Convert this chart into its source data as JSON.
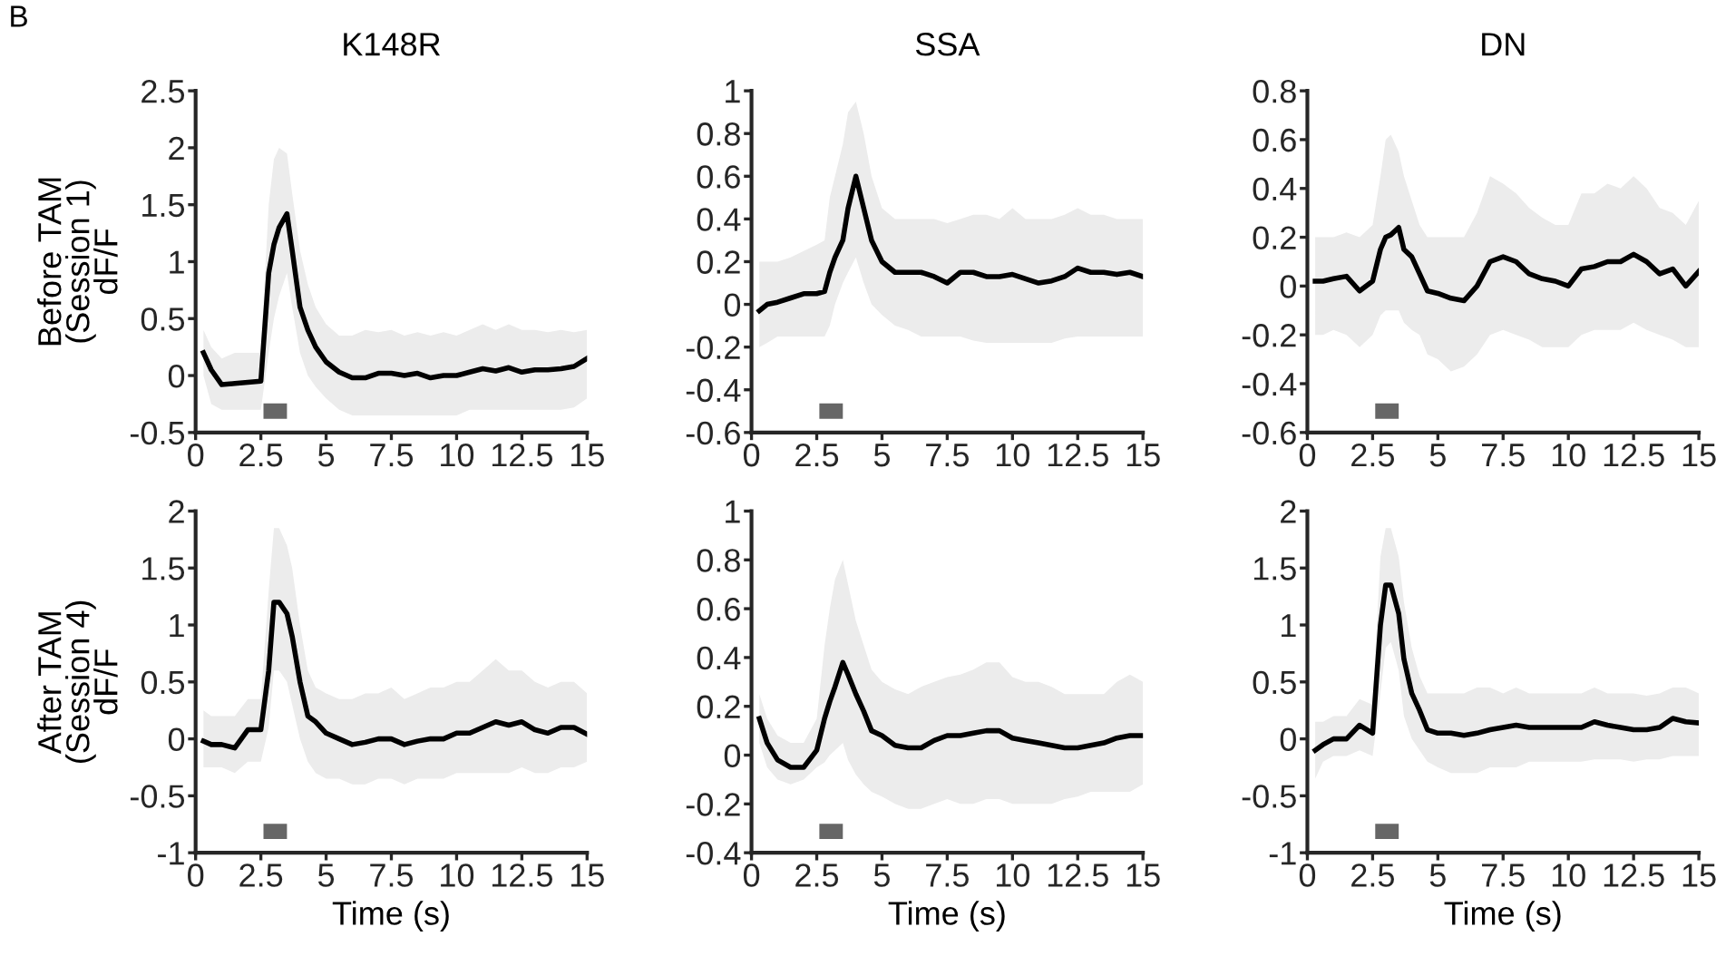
{
  "chart_data": [
    {
      "type": "line",
      "title": "K148R",
      "ylabel": "Before TAM\n(Session 1)\ndF/F",
      "annotations": [
        "B"
      ],
      "x": [
        0.3,
        0.6,
        1,
        1.5,
        2,
        2.5,
        2.8,
        3,
        3.2,
        3.5,
        3.7,
        4,
        4.3,
        4.6,
        5,
        5.5,
        6,
        6.5,
        7,
        7.5,
        8,
        8.5,
        9,
        9.5,
        10,
        10.5,
        11,
        11.5,
        12,
        12.5,
        13,
        13.5,
        14,
        14.5,
        15
      ],
      "xlim": [
        0,
        15
      ],
      "xticks": [
        0,
        2.5,
        5,
        7.5,
        10,
        12.5,
        15
      ],
      "ylim": [
        -0.5,
        2.5
      ],
      "yticks": [
        -0.5,
        0,
        0.5,
        1,
        1.5,
        2,
        2.5
      ],
      "line_style": "solid",
      "bands": [
        {
          "axis": "x",
          "from": 2.6,
          "to": 3.5,
          "color": "#666666"
        }
      ],
      "series": [
        {
          "color": "#000000",
          "values": [
            0.2,
            0.05,
            -0.08,
            -0.07,
            -0.06,
            -0.05,
            0.9,
            1.15,
            1.3,
            1.42,
            1.1,
            0.6,
            0.4,
            0.25,
            0.12,
            0.03,
            -0.02,
            -0.02,
            0.02,
            0.02,
            0,
            0.02,
            -0.02,
            0,
            0,
            0.03,
            0.06,
            0.04,
            0.07,
            0.03,
            0.05,
            0.05,
            0.06,
            0.08,
            0.15
          ],
          "upper": [
            0.4,
            0.25,
            0.15,
            0.2,
            0.2,
            0.2,
            1.5,
            1.9,
            2.0,
            1.95,
            1.6,
            1.1,
            0.8,
            0.6,
            0.45,
            0.35,
            0.35,
            0.4,
            0.38,
            0.4,
            0.35,
            0.38,
            0.35,
            0.38,
            0.35,
            0.4,
            0.45,
            0.4,
            0.45,
            0.4,
            0.4,
            0.38,
            0.4,
            0.38,
            0.4
          ],
          "lower": [
            0.0,
            -0.25,
            -0.3,
            -0.3,
            -0.3,
            -0.3,
            0.2,
            0.5,
            0.7,
            0.9,
            0.6,
            0.2,
            0.0,
            -0.1,
            -0.2,
            -0.3,
            -0.35,
            -0.35,
            -0.35,
            -0.35,
            -0.35,
            -0.35,
            -0.35,
            -0.35,
            -0.35,
            -0.3,
            -0.3,
            -0.3,
            -0.3,
            -0.3,
            -0.3,
            -0.3,
            -0.3,
            -0.28,
            -0.2
          ]
        }
      ]
    },
    {
      "type": "line",
      "title": "SSA",
      "x": [
        0.3,
        0.6,
        1,
        1.5,
        2,
        2.5,
        2.8,
        3,
        3.2,
        3.5,
        3.7,
        4,
        4.3,
        4.6,
        5,
        5.5,
        6,
        6.5,
        7,
        7.5,
        8,
        8.5,
        9,
        9.5,
        10,
        10.5,
        11,
        11.5,
        12,
        12.5,
        13,
        13.5,
        14,
        14.5,
        15
      ],
      "xlim": [
        0,
        15
      ],
      "xticks": [
        0,
        2.5,
        5,
        7.5,
        10,
        12.5,
        15
      ],
      "ylim": [
        -0.6,
        1
      ],
      "yticks": [
        -0.6,
        -0.4,
        -0.2,
        0,
        0.2,
        0.4,
        0.6,
        0.8,
        1
      ],
      "line_style": "solid",
      "bands": [
        {
          "axis": "x",
          "from": 2.6,
          "to": 3.5,
          "color": "#666666"
        }
      ],
      "series": [
        {
          "color": "#000000",
          "values": [
            -0.03,
            0.0,
            0.01,
            0.03,
            0.05,
            0.05,
            0.06,
            0.15,
            0.22,
            0.3,
            0.45,
            0.6,
            0.45,
            0.3,
            0.2,
            0.15,
            0.15,
            0.15,
            0.13,
            0.1,
            0.15,
            0.15,
            0.13,
            0.13,
            0.14,
            0.12,
            0.1,
            0.11,
            0.13,
            0.17,
            0.15,
            0.15,
            0.14,
            0.15,
            0.13
          ],
          "upper": [
            0.2,
            0.2,
            0.2,
            0.22,
            0.25,
            0.28,
            0.3,
            0.5,
            0.6,
            0.75,
            0.9,
            0.95,
            0.8,
            0.6,
            0.45,
            0.4,
            0.4,
            0.4,
            0.4,
            0.38,
            0.4,
            0.42,
            0.42,
            0.4,
            0.45,
            0.4,
            0.4,
            0.4,
            0.42,
            0.45,
            0.42,
            0.42,
            0.4,
            0.4,
            0.4
          ],
          "lower": [
            -0.2,
            -0.18,
            -0.15,
            -0.15,
            -0.15,
            -0.15,
            -0.15,
            -0.1,
            0.0,
            0.1,
            0.15,
            0.22,
            0.1,
            0.0,
            -0.05,
            -0.1,
            -0.12,
            -0.15,
            -0.15,
            -0.15,
            -0.15,
            -0.17,
            -0.18,
            -0.18,
            -0.18,
            -0.18,
            -0.18,
            -0.18,
            -0.16,
            -0.15,
            -0.15,
            -0.15,
            -0.15,
            -0.15,
            -0.15
          ]
        }
      ]
    },
    {
      "type": "line",
      "title": "DN",
      "x": [
        0.3,
        0.6,
        1,
        1.5,
        2,
        2.5,
        2.8,
        3,
        3.2,
        3.5,
        3.7,
        4,
        4.3,
        4.6,
        5,
        5.5,
        6,
        6.5,
        7,
        7.5,
        8,
        8.5,
        9,
        9.5,
        10,
        10.5,
        11,
        11.5,
        12,
        12.5,
        13,
        13.5,
        14,
        14.5,
        15
      ],
      "xlim": [
        0,
        15
      ],
      "xticks": [
        0,
        2.5,
        5,
        7.5,
        10,
        12.5,
        15
      ],
      "ylim": [
        -0.6,
        0.8
      ],
      "yticks": [
        -0.6,
        -0.4,
        -0.2,
        0,
        0.2,
        0.4,
        0.6,
        0.8
      ],
      "line_style": "solid",
      "bands": [
        {
          "axis": "x",
          "from": 2.6,
          "to": 3.5,
          "color": "#666666"
        }
      ],
      "series": [
        {
          "color": "#000000",
          "values": [
            0.02,
            0.02,
            0.03,
            0.04,
            -0.02,
            0.02,
            0.15,
            0.2,
            0.21,
            0.24,
            0.15,
            0.12,
            0.05,
            -0.02,
            -0.03,
            -0.05,
            -0.06,
            0.0,
            0.1,
            0.12,
            0.1,
            0.05,
            0.03,
            0.02,
            0.0,
            0.07,
            0.08,
            0.1,
            0.1,
            0.13,
            0.1,
            0.05,
            0.07,
            0.0,
            0.06
          ],
          "upper": [
            0.2,
            0.2,
            0.2,
            0.22,
            0.2,
            0.25,
            0.45,
            0.6,
            0.62,
            0.55,
            0.45,
            0.35,
            0.25,
            0.2,
            0.2,
            0.2,
            0.2,
            0.3,
            0.45,
            0.42,
            0.38,
            0.32,
            0.28,
            0.25,
            0.25,
            0.38,
            0.38,
            0.42,
            0.4,
            0.45,
            0.4,
            0.32,
            0.3,
            0.25,
            0.35
          ],
          "lower": [
            -0.2,
            -0.2,
            -0.18,
            -0.2,
            -0.25,
            -0.2,
            -0.12,
            -0.1,
            -0.1,
            -0.1,
            -0.15,
            -0.18,
            -0.2,
            -0.28,
            -0.3,
            -0.35,
            -0.33,
            -0.28,
            -0.2,
            -0.18,
            -0.2,
            -0.22,
            -0.25,
            -0.25,
            -0.25,
            -0.2,
            -0.18,
            -0.18,
            -0.18,
            -0.15,
            -0.18,
            -0.2,
            -0.22,
            -0.25,
            -0.25
          ]
        }
      ]
    },
    {
      "type": "line",
      "ylabel": "After TAM\n(Session 4)\ndF/F",
      "xlabel": "Time (s)",
      "x": [
        0.3,
        0.6,
        1,
        1.5,
        2,
        2.5,
        2.8,
        3,
        3.2,
        3.5,
        3.7,
        4,
        4.3,
        4.6,
        5,
        5.5,
        6,
        6.5,
        7,
        7.5,
        8,
        8.5,
        9,
        9.5,
        10,
        10.5,
        11,
        11.5,
        12,
        12.5,
        13,
        13.5,
        14,
        14.5,
        15
      ],
      "xlim": [
        0,
        15
      ],
      "xticks": [
        0,
        2.5,
        5,
        7.5,
        10,
        12.5,
        15
      ],
      "ylim": [
        -1,
        2
      ],
      "yticks": [
        -1,
        -0.5,
        0,
        0.5,
        1,
        1.5,
        2
      ],
      "line_style": "solid",
      "bands": [
        {
          "axis": "x",
          "from": 2.6,
          "to": 3.5,
          "color": "#666666"
        }
      ],
      "series": [
        {
          "color": "#000000",
          "values": [
            -0.02,
            -0.05,
            -0.05,
            -0.08,
            0.08,
            0.08,
            0.6,
            1.2,
            1.2,
            1.1,
            0.9,
            0.5,
            0.2,
            0.15,
            0.05,
            0.0,
            -0.05,
            -0.03,
            0.0,
            0.0,
            -0.05,
            -0.02,
            0.0,
            0.0,
            0.05,
            0.05,
            0.1,
            0.15,
            0.12,
            0.15,
            0.08,
            0.05,
            0.1,
            0.1,
            0.04
          ],
          "upper": [
            0.25,
            0.2,
            0.2,
            0.2,
            0.35,
            0.35,
            1.3,
            1.85,
            1.85,
            1.7,
            1.5,
            1.0,
            0.6,
            0.45,
            0.4,
            0.35,
            0.35,
            0.4,
            0.4,
            0.45,
            0.35,
            0.4,
            0.45,
            0.45,
            0.5,
            0.5,
            0.6,
            0.7,
            0.6,
            0.6,
            0.5,
            0.45,
            0.5,
            0.5,
            0.4
          ],
          "lower": [
            -0.25,
            -0.25,
            -0.25,
            -0.3,
            -0.2,
            -0.2,
            0.1,
            0.6,
            0.6,
            0.5,
            0.3,
            0.0,
            -0.2,
            -0.3,
            -0.35,
            -0.35,
            -0.4,
            -0.4,
            -0.35,
            -0.35,
            -0.4,
            -0.35,
            -0.35,
            -0.35,
            -0.3,
            -0.3,
            -0.3,
            -0.3,
            -0.3,
            -0.25,
            -0.3,
            -0.3,
            -0.25,
            -0.25,
            -0.2
          ]
        }
      ]
    },
    {
      "type": "line",
      "xlabel": "Time (s)",
      "x": [
        0.3,
        0.6,
        1,
        1.5,
        2,
        2.5,
        2.8,
        3,
        3.2,
        3.5,
        3.7,
        4,
        4.3,
        4.6,
        5,
        5.5,
        6,
        6.5,
        7,
        7.5,
        8,
        8.5,
        9,
        9.5,
        10,
        10.5,
        11,
        11.5,
        12,
        12.5,
        13,
        13.5,
        14,
        14.5,
        15
      ],
      "xlim": [
        0,
        15
      ],
      "xticks": [
        0,
        2.5,
        5,
        7.5,
        10,
        12.5,
        15
      ],
      "ylim": [
        -0.4,
        1
      ],
      "yticks": [
        -0.4,
        -0.2,
        0,
        0.2,
        0.4,
        0.6,
        0.8,
        1
      ],
      "line_style": "solid",
      "bands": [
        {
          "axis": "x",
          "from": 2.6,
          "to": 3.5,
          "color": "#666666"
        }
      ],
      "series": [
        {
          "color": "#000000",
          "values": [
            0.15,
            0.05,
            -0.02,
            -0.05,
            -0.05,
            0.02,
            0.15,
            0.22,
            0.28,
            0.38,
            0.33,
            0.25,
            0.18,
            0.1,
            0.08,
            0.04,
            0.03,
            0.03,
            0.06,
            0.08,
            0.08,
            0.09,
            0.1,
            0.1,
            0.07,
            0.06,
            0.05,
            0.04,
            0.03,
            0.03,
            0.04,
            0.05,
            0.07,
            0.08,
            0.08
          ],
          "upper": [
            0.25,
            0.15,
            0.08,
            0.05,
            0.05,
            0.15,
            0.45,
            0.6,
            0.72,
            0.8,
            0.7,
            0.55,
            0.45,
            0.35,
            0.3,
            0.27,
            0.25,
            0.28,
            0.3,
            0.32,
            0.33,
            0.35,
            0.38,
            0.38,
            0.32,
            0.3,
            0.3,
            0.28,
            0.25,
            0.25,
            0.25,
            0.25,
            0.3,
            0.33,
            0.3
          ],
          "lower": [
            0.05,
            -0.05,
            -0.1,
            -0.12,
            -0.1,
            -0.05,
            -0.03,
            0.0,
            0.02,
            0.05,
            -0.02,
            -0.08,
            -0.12,
            -0.15,
            -0.17,
            -0.2,
            -0.22,
            -0.22,
            -0.2,
            -0.18,
            -0.2,
            -0.2,
            -0.18,
            -0.18,
            -0.2,
            -0.2,
            -0.2,
            -0.2,
            -0.18,
            -0.17,
            -0.15,
            -0.15,
            -0.15,
            -0.15,
            -0.12
          ]
        }
      ]
    },
    {
      "type": "line",
      "xlabel": "Time (s)",
      "x": [
        0.3,
        0.6,
        1,
        1.5,
        2,
        2.5,
        2.8,
        3,
        3.2,
        3.5,
        3.7,
        4,
        4.3,
        4.6,
        5,
        5.5,
        6,
        6.5,
        7,
        7.5,
        8,
        8.5,
        9,
        9.5,
        10,
        10.5,
        11,
        11.5,
        12,
        12.5,
        13,
        13.5,
        14,
        14.5,
        15
      ],
      "xlim": [
        0,
        15
      ],
      "xticks": [
        0,
        2.5,
        5,
        7.5,
        10,
        12.5,
        15
      ],
      "ylim": [
        -1,
        2
      ],
      "yticks": [
        -1,
        -0.5,
        0,
        0.5,
        1,
        1.5,
        2
      ],
      "line_style": "solid",
      "bands": [
        {
          "axis": "x",
          "from": 2.6,
          "to": 3.5,
          "color": "#666666"
        }
      ],
      "series": [
        {
          "color": "#000000",
          "values": [
            -0.1,
            -0.05,
            0.0,
            0.0,
            0.12,
            0.05,
            1.0,
            1.35,
            1.35,
            1.1,
            0.7,
            0.4,
            0.25,
            0.08,
            0.05,
            0.05,
            0.03,
            0.05,
            0.08,
            0.1,
            0.12,
            0.1,
            0.1,
            0.1,
            0.1,
            0.1,
            0.15,
            0.12,
            0.1,
            0.08,
            0.08,
            0.1,
            0.18,
            0.15,
            0.14
          ],
          "upper": [
            0.15,
            0.15,
            0.2,
            0.2,
            0.35,
            0.3,
            1.6,
            1.85,
            1.85,
            1.6,
            1.2,
            0.8,
            0.55,
            0.4,
            0.4,
            0.4,
            0.4,
            0.45,
            0.45,
            0.4,
            0.45,
            0.4,
            0.4,
            0.4,
            0.4,
            0.4,
            0.45,
            0.4,
            0.4,
            0.4,
            0.38,
            0.4,
            0.45,
            0.45,
            0.4
          ],
          "lower": [
            -0.35,
            -0.2,
            -0.15,
            -0.15,
            -0.1,
            -0.15,
            0.4,
            0.8,
            0.85,
            0.6,
            0.2,
            0.0,
            -0.1,
            -0.2,
            -0.25,
            -0.3,
            -0.3,
            -0.3,
            -0.25,
            -0.25,
            -0.25,
            -0.2,
            -0.2,
            -0.2,
            -0.2,
            -0.2,
            -0.18,
            -0.18,
            -0.18,
            -0.2,
            -0.18,
            -0.18,
            -0.15,
            -0.15,
            -0.15
          ]
        }
      ]
    }
  ]
}
